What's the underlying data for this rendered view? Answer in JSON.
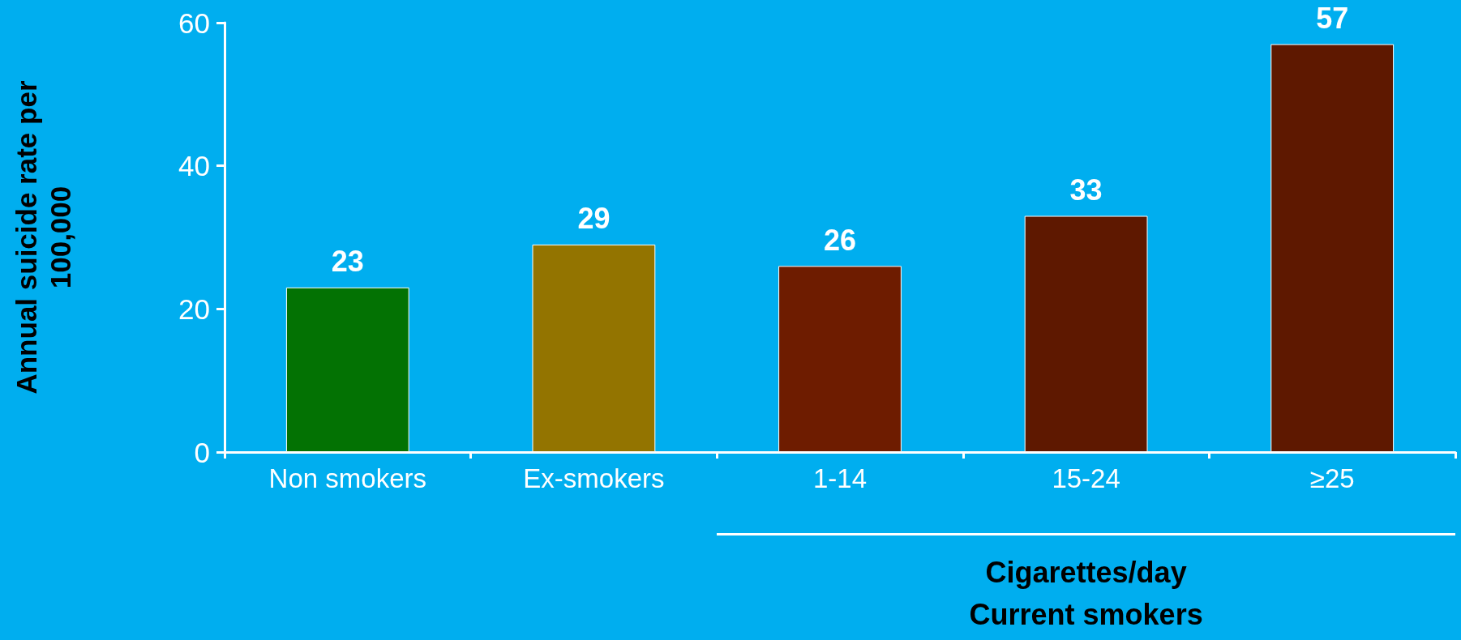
{
  "chart_data": {
    "type": "bar",
    "xlabel": "Cigarettes/day\nCurrent smokers",
    "ylabel": "Annual suicide rate per\n100,000",
    "categories": [
      "Non smokers",
      "Ex-smokers",
      "1-14",
      "15-24",
      "≥25"
    ],
    "values": [
      23,
      29,
      26,
      33,
      57
    ],
    "colors": [
      "#037203",
      "#937400",
      "#6e1c00",
      "#5e1800",
      "#5e1800"
    ],
    "ylim": [
      0,
      60
    ],
    "yticks": [
      0,
      20,
      40,
      60
    ],
    "grid": false,
    "data_labels": true
  }
}
